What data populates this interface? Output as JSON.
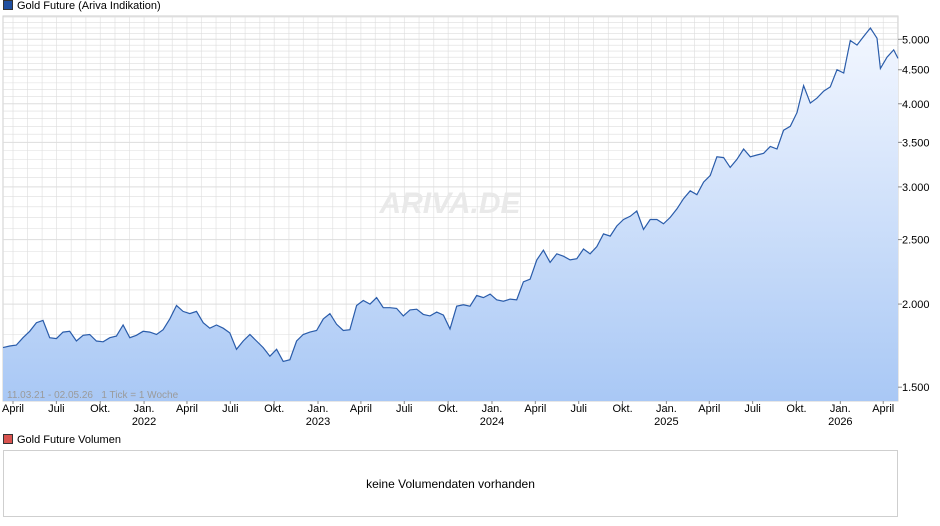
{
  "legend_price": "Gold Future (Ariva Indikation)",
  "legend_volume": "Gold Future Volumen",
  "watermark": "ARIVA.DE",
  "info_text": "11.03.21 - 02.05.26   1 Tick = 1 Woche",
  "volume_message": "keine Volumendaten vorhanden",
  "colors": {
    "line": "#2a5caa",
    "fill_top": "#f3f7ff",
    "fill_bottom": "#a9c8f5",
    "grid": "#dddddd",
    "price_swatch": "#1f4fa0",
    "volume_swatch": "#d9534f"
  },
  "chart_data": {
    "type": "area",
    "title": "",
    "xlabel": "",
    "ylabel": "",
    "y_scale": "log",
    "ylim": [
      1430,
      5420
    ],
    "grid": true,
    "legend_position": "top-left",
    "y_ticks": [
      1500,
      2000,
      2500,
      3000,
      3500,
      4000,
      4500,
      5000
    ],
    "y_tick_labels": [
      "1.500",
      "2.000",
      "2.500",
      "3.000",
      "3.500",
      "4.000",
      "4.500",
      "5.000"
    ],
    "x_range": [
      "2021-03-11",
      "2026-05-02"
    ],
    "x_ticks": [
      {
        "date": "2021-04-01",
        "label": "April",
        "year": ""
      },
      {
        "date": "2021-07-01",
        "label": "Juli",
        "year": ""
      },
      {
        "date": "2021-10-01",
        "label": "Okt.",
        "year": ""
      },
      {
        "date": "2022-01-01",
        "label": "Jan.",
        "year": "2022"
      },
      {
        "date": "2022-04-01",
        "label": "April",
        "year": ""
      },
      {
        "date": "2022-07-01",
        "label": "Juli",
        "year": ""
      },
      {
        "date": "2022-10-01",
        "label": "Okt.",
        "year": ""
      },
      {
        "date": "2023-01-01",
        "label": "Jan.",
        "year": "2023"
      },
      {
        "date": "2023-04-01",
        "label": "April",
        "year": ""
      },
      {
        "date": "2023-07-01",
        "label": "Juli",
        "year": ""
      },
      {
        "date": "2023-10-01",
        "label": "Okt.",
        "year": ""
      },
      {
        "date": "2024-01-01",
        "label": "Jan.",
        "year": "2024"
      },
      {
        "date": "2024-04-01",
        "label": "April",
        "year": ""
      },
      {
        "date": "2024-07-01",
        "label": "Juli",
        "year": ""
      },
      {
        "date": "2024-10-01",
        "label": "Okt.",
        "year": ""
      },
      {
        "date": "2025-01-01",
        "label": "Jan.",
        "year": "2025"
      },
      {
        "date": "2025-04-01",
        "label": "April",
        "year": ""
      },
      {
        "date": "2025-07-01",
        "label": "Juli",
        "year": ""
      },
      {
        "date": "2025-10-01",
        "label": "Okt.",
        "year": ""
      },
      {
        "date": "2026-01-01",
        "label": "Jan.",
        "year": "2026"
      },
      {
        "date": "2026-04-01",
        "label": "April",
        "year": ""
      }
    ],
    "series": [
      {
        "name": "Gold Future (Ariva Indikation)",
        "points": [
          [
            "2021-03-11",
            1720
          ],
          [
            "2021-03-25",
            1730
          ],
          [
            "2021-04-08",
            1735
          ],
          [
            "2021-04-22",
            1780
          ],
          [
            "2021-05-06",
            1820
          ],
          [
            "2021-05-20",
            1875
          ],
          [
            "2021-06-03",
            1890
          ],
          [
            "2021-06-17",
            1780
          ],
          [
            "2021-07-01",
            1775
          ],
          [
            "2021-07-15",
            1815
          ],
          [
            "2021-07-29",
            1820
          ],
          [
            "2021-08-12",
            1760
          ],
          [
            "2021-08-26",
            1795
          ],
          [
            "2021-09-09",
            1800
          ],
          [
            "2021-09-23",
            1760
          ],
          [
            "2021-10-07",
            1755
          ],
          [
            "2021-10-21",
            1780
          ],
          [
            "2021-11-04",
            1790
          ],
          [
            "2021-11-18",
            1860
          ],
          [
            "2021-12-02",
            1780
          ],
          [
            "2021-12-16",
            1795
          ],
          [
            "2021-12-30",
            1820
          ],
          [
            "2022-01-13",
            1815
          ],
          [
            "2022-01-27",
            1800
          ],
          [
            "2022-02-10",
            1830
          ],
          [
            "2022-02-24",
            1900
          ],
          [
            "2022-03-10",
            1990
          ],
          [
            "2022-03-24",
            1950
          ],
          [
            "2022-04-07",
            1935
          ],
          [
            "2022-04-21",
            1950
          ],
          [
            "2022-05-05",
            1875
          ],
          [
            "2022-05-19",
            1840
          ],
          [
            "2022-06-02",
            1860
          ],
          [
            "2022-06-16",
            1840
          ],
          [
            "2022-06-30",
            1810
          ],
          [
            "2022-07-14",
            1710
          ],
          [
            "2022-07-28",
            1760
          ],
          [
            "2022-08-11",
            1800
          ],
          [
            "2022-08-25",
            1760
          ],
          [
            "2022-09-08",
            1720
          ],
          [
            "2022-09-22",
            1670
          ],
          [
            "2022-10-06",
            1710
          ],
          [
            "2022-10-20",
            1640
          ],
          [
            "2022-11-03",
            1650
          ],
          [
            "2022-11-17",
            1760
          ],
          [
            "2022-12-01",
            1800
          ],
          [
            "2022-12-15",
            1815
          ],
          [
            "2022-12-29",
            1825
          ],
          [
            "2023-01-12",
            1900
          ],
          [
            "2023-01-26",
            1935
          ],
          [
            "2023-02-09",
            1865
          ],
          [
            "2023-02-23",
            1825
          ],
          [
            "2023-03-09",
            1830
          ],
          [
            "2023-03-23",
            1990
          ],
          [
            "2023-04-06",
            2025
          ],
          [
            "2023-04-20",
            2000
          ],
          [
            "2023-05-04",
            2045
          ],
          [
            "2023-05-18",
            1975
          ],
          [
            "2023-06-01",
            1975
          ],
          [
            "2023-06-15",
            1970
          ],
          [
            "2023-06-29",
            1920
          ],
          [
            "2023-07-13",
            1960
          ],
          [
            "2023-07-27",
            1965
          ],
          [
            "2023-08-10",
            1930
          ],
          [
            "2023-08-24",
            1920
          ],
          [
            "2023-09-07",
            1945
          ],
          [
            "2023-09-21",
            1925
          ],
          [
            "2023-10-05",
            1835
          ],
          [
            "2023-10-19",
            1985
          ],
          [
            "2023-11-02",
            1995
          ],
          [
            "2023-11-16",
            1985
          ],
          [
            "2023-11-30",
            2060
          ],
          [
            "2023-12-14",
            2045
          ],
          [
            "2023-12-28",
            2070
          ],
          [
            "2024-01-11",
            2030
          ],
          [
            "2024-01-25",
            2020
          ],
          [
            "2024-02-08",
            2035
          ],
          [
            "2024-02-22",
            2030
          ],
          [
            "2024-03-07",
            2160
          ],
          [
            "2024-03-21",
            2180
          ],
          [
            "2024-04-04",
            2330
          ],
          [
            "2024-04-18",
            2410
          ],
          [
            "2024-05-02",
            2310
          ],
          [
            "2024-05-16",
            2380
          ],
          [
            "2024-05-30",
            2360
          ],
          [
            "2024-06-13",
            2330
          ],
          [
            "2024-06-27",
            2340
          ],
          [
            "2024-07-11",
            2420
          ],
          [
            "2024-07-25",
            2380
          ],
          [
            "2024-08-08",
            2440
          ],
          [
            "2024-08-22",
            2550
          ],
          [
            "2024-09-05",
            2530
          ],
          [
            "2024-09-19",
            2620
          ],
          [
            "2024-10-03",
            2680
          ],
          [
            "2024-10-17",
            2710
          ],
          [
            "2024-10-31",
            2760
          ],
          [
            "2024-11-14",
            2590
          ],
          [
            "2024-11-28",
            2680
          ],
          [
            "2024-12-12",
            2680
          ],
          [
            "2024-12-26",
            2640
          ],
          [
            "2025-01-09",
            2700
          ],
          [
            "2025-01-23",
            2780
          ],
          [
            "2025-02-06",
            2880
          ],
          [
            "2025-02-20",
            2960
          ],
          [
            "2025-03-06",
            2920
          ],
          [
            "2025-03-20",
            3050
          ],
          [
            "2025-04-03",
            3120
          ],
          [
            "2025-04-17",
            3330
          ],
          [
            "2025-05-01",
            3320
          ],
          [
            "2025-05-15",
            3210
          ],
          [
            "2025-05-29",
            3300
          ],
          [
            "2025-06-12",
            3420
          ],
          [
            "2025-06-26",
            3330
          ],
          [
            "2025-07-10",
            3350
          ],
          [
            "2025-07-24",
            3370
          ],
          [
            "2025-08-07",
            3450
          ],
          [
            "2025-08-21",
            3420
          ],
          [
            "2025-09-04",
            3650
          ],
          [
            "2025-09-18",
            3700
          ],
          [
            "2025-10-02",
            3880
          ],
          [
            "2025-10-16",
            4260
          ],
          [
            "2025-10-30",
            4010
          ],
          [
            "2025-11-13",
            4080
          ],
          [
            "2025-11-27",
            4180
          ],
          [
            "2025-12-11",
            4240
          ],
          [
            "2025-12-25",
            4500
          ],
          [
            "2026-01-08",
            4450
          ],
          [
            "2026-01-22",
            4980
          ],
          [
            "2026-02-05",
            4900
          ],
          [
            "2026-02-19",
            5050
          ],
          [
            "2026-03-05",
            5200
          ],
          [
            "2026-03-19",
            5020
          ],
          [
            "2026-03-26",
            4520
          ],
          [
            "2026-04-09",
            4700
          ],
          [
            "2026-04-23",
            4820
          ],
          [
            "2026-05-02",
            4680
          ]
        ]
      }
    ]
  }
}
